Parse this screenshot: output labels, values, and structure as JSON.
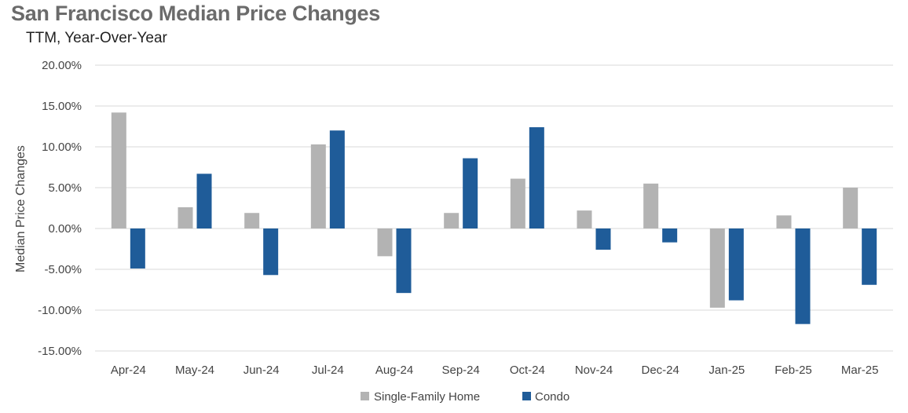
{
  "chart_data": {
    "type": "bar",
    "title": "San Francisco Median Price Changes",
    "subtitle": "TTM, Year-Over-Year",
    "ylabel": "Median Price Changes",
    "xlabel": "",
    "categories": [
      "Apr-24",
      "May-24",
      "Jun-24",
      "Jul-24",
      "Aug-24",
      "Sep-24",
      "Oct-24",
      "Nov-24",
      "Dec-24",
      "Jan-25",
      "Feb-25",
      "Mar-25"
    ],
    "series": [
      {
        "name": "Single-Family Home",
        "color": "#b3b3b3",
        "values": [
          14.2,
          2.6,
          1.9,
          10.3,
          -3.4,
          1.9,
          6.1,
          2.2,
          5.5,
          -9.7,
          1.6,
          5.0
        ]
      },
      {
        "name": "Condo",
        "color": "#1f5c99",
        "values": [
          -4.9,
          6.7,
          -5.7,
          12.0,
          -7.9,
          8.6,
          12.4,
          -2.6,
          -1.7,
          -8.8,
          -11.7,
          -6.9
        ]
      }
    ],
    "ylim": [
      -15,
      20
    ],
    "yticks": [
      20,
      15,
      10,
      5,
      0,
      -5,
      -10,
      -15
    ],
    "ytick_labels": [
      "20.00%",
      "15.00%",
      "10.00%",
      "5.00%",
      "0.00%",
      "-5.00%",
      "-10.00%",
      "-15.00%"
    ],
    "grid": true,
    "legend_position": "bottom-center"
  }
}
